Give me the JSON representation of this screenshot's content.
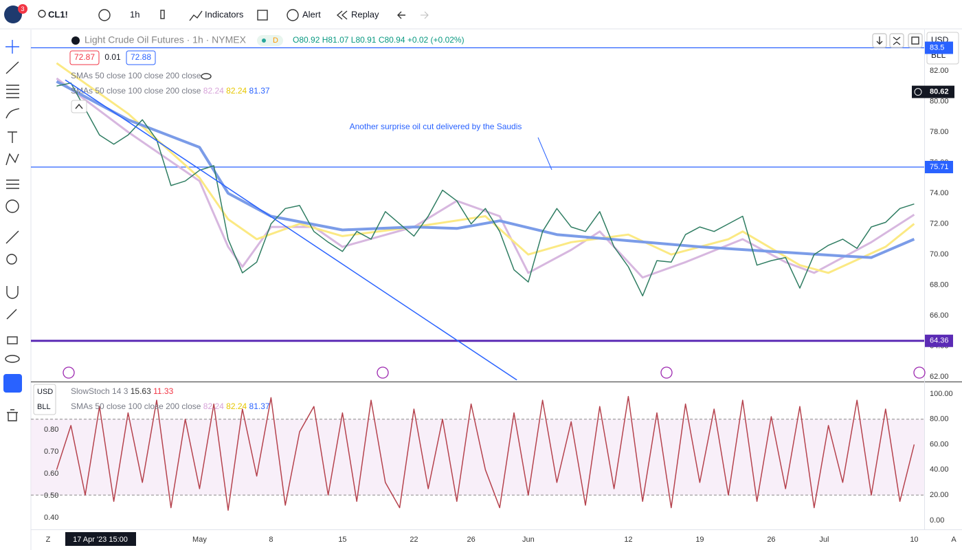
{
  "toolbar": {
    "badge": "3",
    "symbol": "CL1!",
    "interval": "1h",
    "indicators": "Indicators",
    "alert": "Alert",
    "replay": "Replay"
  },
  "legend": {
    "title": "Light Crude Oil Futures · 1h · NYMEX",
    "flag": "D",
    "open": "O80.92",
    "high": "H81.07",
    "low": "L80.91",
    "close": "C80.94",
    "change": "+0.02 (+0.02%)",
    "bid": "72.87",
    "spread": "0.01",
    "ask": "72.88",
    "sma_1": "SMAs 50 close 100 close 200 close",
    "sma_2": "SMAs 50 close 100 close 200 close",
    "sma_values": [
      "82.24",
      "82.24",
      "81.37"
    ],
    "stoch": "SlowStoch 14 3",
    "stoch_values": [
      "15.63",
      "11.33"
    ],
    "sma_3": "SMAs 50 close 100 close 200 close",
    "sma_values_2": [
      "82.24",
      "82.24",
      "81.37"
    ]
  },
  "price_axis": {
    "currency": "USD",
    "unit": "BLL"
  },
  "stoch_axis": {
    "currency": "USD",
    "unit": "BLL",
    "labels": [
      "0.80",
      "0.70",
      "0.60",
      "0.50",
      "0.40"
    ]
  },
  "time_axis": {
    "cursor": "17 Apr '23 15:00",
    "left": "Z",
    "right": "A"
  },
  "chart_data": [
    {
      "type": "line",
      "annotation": "Another surprise oil cut delivered by the Saudis",
      "xlim": [
        -1.8,
        60.7
      ],
      "ylim": [
        61.7,
        84.6
      ],
      "grid": false,
      "xticks": [
        {
          "value": 10,
          "label": "May"
        },
        {
          "value": 15,
          "label": "8"
        },
        {
          "value": 20,
          "label": "15"
        },
        {
          "value": 25,
          "label": "22"
        },
        {
          "value": 29,
          "label": "26"
        },
        {
          "value": 33,
          "label": "Jun"
        },
        {
          "value": 40,
          "label": "12"
        },
        {
          "value": 45,
          "label": "19"
        },
        {
          "value": 50,
          "label": "26"
        },
        {
          "value": 53.7,
          "label": "Jul"
        },
        {
          "value": 60,
          "label": "10"
        }
      ],
      "yticks": [
        {
          "value": 62,
          "label": "62.00"
        },
        {
          "value": 64,
          "label": "64.00"
        },
        {
          "value": 66,
          "label": "66.00"
        },
        {
          "value": 68,
          "label": "68.00"
        },
        {
          "value": 70,
          "label": "70.00"
        },
        {
          "value": 72,
          "label": "72.00"
        },
        {
          "value": 74,
          "label": "74.00"
        },
        {
          "value": 76,
          "label": "76.00"
        },
        {
          "value": 78,
          "label": "78.00"
        },
        {
          "value": 80,
          "label": "80.00"
        },
        {
          "value": 82,
          "label": "82.00"
        }
      ],
      "price_tag": 80.62,
      "hlines": [
        {
          "value": 83.5,
          "color": "#2962ff"
        },
        {
          "value": 75.71,
          "color": "#2962ff"
        },
        {
          "value": 64.36,
          "color": "#5b2bb5"
        }
      ],
      "trendline": {
        "x": [
          0.6,
          32.2
        ],
        "y": [
          81.4,
          61.8
        ],
        "color": "#2962ff"
      },
      "series": [
        {
          "color": "#d7b7df",
          "width": 3,
          "x": [
            0,
            5,
            10,
            12,
            13,
            15,
            18,
            20,
            25,
            28,
            31,
            33,
            36,
            38,
            41,
            44,
            48,
            51,
            53,
            57,
            60
          ],
          "values": [
            81.5,
            78.0,
            74.8,
            70.5,
            69.2,
            71.8,
            71.8,
            70.5,
            71.8,
            73.5,
            72.5,
            68.8,
            70.3,
            71.5,
            68.5,
            69.5,
            71.0,
            69.5,
            68.8,
            70.8,
            72.6
          ]
        },
        {
          "color": "#fbe983",
          "width": 3,
          "x": [
            0,
            5,
            10,
            12,
            14,
            17,
            20,
            25,
            30,
            33,
            36,
            40,
            43,
            47,
            48,
            52,
            54,
            58,
            60
          ],
          "values": [
            82.5,
            79.2,
            75.0,
            72.3,
            71.0,
            72.0,
            71.2,
            71.8,
            72.5,
            70.0,
            70.8,
            71.3,
            70.0,
            71.0,
            71.5,
            69.3,
            68.8,
            70.5,
            72.0
          ]
        },
        {
          "color": "#7b9ce8",
          "width": 4,
          "x": [
            0,
            5,
            10,
            12,
            15,
            20,
            25,
            28,
            31,
            35,
            40,
            45,
            50,
            55,
            57,
            60
          ],
          "values": [
            81.3,
            78.8,
            77.0,
            74.0,
            72.5,
            71.6,
            71.8,
            71.7,
            72.2,
            71.3,
            70.9,
            70.5,
            70.2,
            69.9,
            69.8,
            71.0
          ]
        },
        {
          "color": "#2f7d62",
          "width": 1.5,
          "x": [
            0,
            1,
            2,
            3,
            4,
            5,
            6,
            7,
            8,
            9,
            10,
            11,
            12,
            13,
            14,
            15,
            16,
            17,
            18,
            19,
            20,
            21,
            22,
            23,
            24,
            25,
            26,
            27,
            28,
            29,
            30,
            31,
            32,
            33,
            34,
            35,
            36,
            37,
            38,
            39,
            40,
            41,
            42,
            43,
            44,
            45,
            46,
            47,
            48,
            49,
            50,
            51,
            52,
            53,
            54,
            55,
            56,
            57,
            58,
            59,
            60
          ],
          "values": [
            81.0,
            81.2,
            79.5,
            77.8,
            77.2,
            77.8,
            78.8,
            77.5,
            74.5,
            74.8,
            75.5,
            75.8,
            71.0,
            68.8,
            69.5,
            72.0,
            73.0,
            73.2,
            71.5,
            70.8,
            70.2,
            71.5,
            71.0,
            72.8,
            72.0,
            71.2,
            72.5,
            74.2,
            73.5,
            72.0,
            73.0,
            71.5,
            69.0,
            68.2,
            71.5,
            73.0,
            71.8,
            71.5,
            72.8,
            70.5,
            69.2,
            67.3,
            69.6,
            69.5,
            71.3,
            71.8,
            71.5,
            72.0,
            72.5,
            69.3,
            69.6,
            69.8,
            67.8,
            70.0,
            70.6,
            71.0,
            70.4,
            71.8,
            72.1,
            73.0,
            73.3
          ]
        }
      ]
    },
    {
      "type": "line",
      "xlim": [
        -1.8,
        60.7
      ],
      "ylim": [
        -7.1,
        109.2
      ],
      "band": [
        20,
        80
      ],
      "yticks": [
        {
          "value": 0,
          "label": "0.00"
        },
        {
          "value": 20,
          "label": "20.00"
        },
        {
          "value": 40,
          "label": "40.00"
        },
        {
          "value": 60,
          "label": "60.00"
        },
        {
          "value": 80,
          "label": "80.00"
        },
        {
          "value": 100,
          "label": "100.00"
        }
      ],
      "series": [
        {
          "color": "#b5424d",
          "width": 1.5,
          "x": [
            0,
            1,
            2,
            3,
            4,
            5,
            6,
            7,
            8,
            9,
            10,
            11,
            12,
            13,
            14,
            15,
            16,
            17,
            18,
            19,
            20,
            21,
            22,
            23,
            24,
            25,
            26,
            27,
            28,
            29,
            30,
            31,
            32,
            33,
            34,
            35,
            36,
            37,
            38,
            39,
            40,
            41,
            42,
            43,
            44,
            45,
            46,
            47,
            48,
            49,
            50,
            51,
            52,
            53,
            54,
            55,
            56,
            57,
            58,
            59,
            60
          ],
          "values": [
            40,
            75,
            20,
            90,
            15,
            85,
            30,
            95,
            10,
            80,
            25,
            92,
            8,
            88,
            35,
            97,
            12,
            70,
            90,
            20,
            85,
            15,
            95,
            30,
            10,
            88,
            25,
            80,
            15,
            92,
            40,
            10,
            85,
            20,
            95,
            30,
            78,
            12,
            90,
            25,
            98,
            15,
            85,
            10,
            92,
            30,
            88,
            20,
            95,
            15,
            82,
            25,
            90,
            10,
            75,
            30,
            95,
            20,
            88,
            15,
            60
          ]
        }
      ]
    }
  ]
}
